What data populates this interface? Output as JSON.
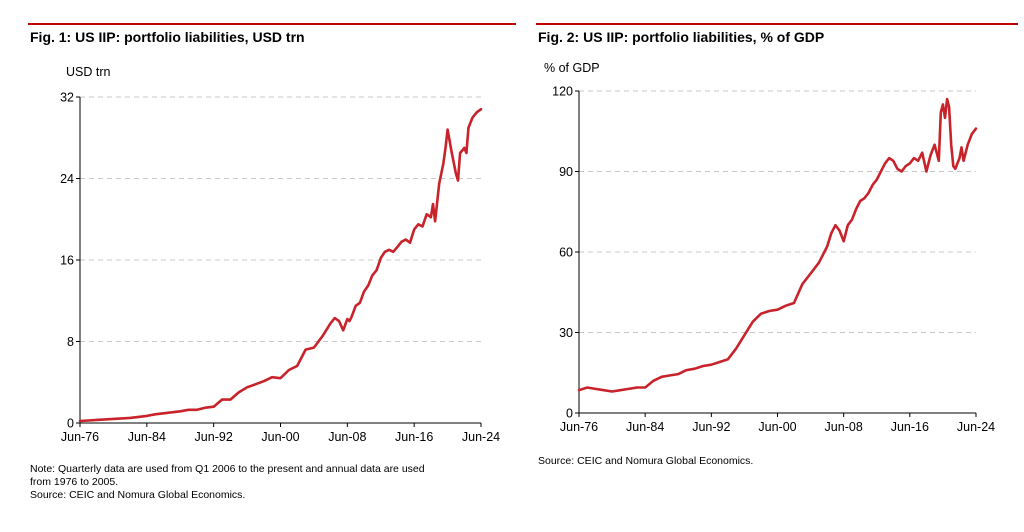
{
  "charts": [
    {
      "title": "Fig. 1: US IIP: portfolio liabilities, USD trn",
      "note_lines": [
        "Note: Quarterly data are used from Q1 2006 to the present and annual data are used",
        "from 1976 to 2005."
      ],
      "source": "Source: CEIC and Nomura Global Economics."
    },
    {
      "title": "Fig. 2: US IIP: portfolio liabilities, % of GDP",
      "source": "Source: CEIC and Nomura Global Economics."
    }
  ],
  "colors": {
    "line": "#c8232b",
    "accent": "#c00000",
    "grid": "#c8c8c8"
  },
  "chart_data": [
    {
      "type": "line",
      "title": "Fig. 1: US IIP: portfolio liabilities, USD trn",
      "ylabel": "USD trn",
      "xlabel": "",
      "ylim": [
        0,
        32
      ],
      "yticks": [
        0,
        8,
        16,
        24,
        32
      ],
      "xlim": [
        1976.5,
        2024.5
      ],
      "xticks": [
        1976.5,
        1984.5,
        1992.5,
        2000.5,
        2008.5,
        2016.5,
        2024.5
      ],
      "xtick_labels": [
        "Jun-76",
        "Jun-84",
        "Jun-92",
        "Jun-00",
        "Jun-08",
        "Jun-16",
        "Jun-24"
      ],
      "grid": true,
      "series": [
        {
          "name": "Portfolio liabilities (USD trn)",
          "x": [
            1976.5,
            1977.5,
            1978.5,
            1979.5,
            1980.5,
            1981.5,
            1982.5,
            1983.5,
            1984.5,
            1985.5,
            1986.5,
            1987.5,
            1988.5,
            1989.5,
            1990.5,
            1991.5,
            1992.5,
            1993.5,
            1994.5,
            1995.5,
            1996.5,
            1997.5,
            1998.5,
            1999.5,
            2000.5,
            2001.5,
            2002.5,
            2003.5,
            2004.5,
            2005.5,
            2006.5,
            2007.0,
            2007.5,
            2008.0,
            2008.5,
            2008.75,
            2009.0,
            2009.5,
            2010.0,
            2010.5,
            2011.0,
            2011.5,
            2012.0,
            2012.5,
            2013.0,
            2013.5,
            2014.0,
            2014.5,
            2015.0,
            2015.5,
            2016.0,
            2016.5,
            2017.0,
            2017.5,
            2018.0,
            2018.5,
            2018.75,
            2019.0,
            2019.5,
            2020.0,
            2020.25,
            2020.5,
            2021.0,
            2021.5,
            2021.75,
            2022.0,
            2022.5,
            2022.75,
            2023.0,
            2023.5,
            2024.0,
            2024.5
          ],
          "values": [
            0.2,
            0.25,
            0.3,
            0.35,
            0.4,
            0.45,
            0.5,
            0.6,
            0.7,
            0.85,
            0.95,
            1.05,
            1.15,
            1.3,
            1.3,
            1.5,
            1.6,
            2.3,
            2.3,
            3.0,
            3.5,
            3.8,
            4.1,
            4.5,
            4.4,
            5.2,
            5.6,
            7.2,
            7.4,
            8.5,
            9.8,
            10.3,
            10.0,
            9.1,
            10.2,
            10.0,
            10.4,
            11.5,
            11.8,
            12.9,
            13.5,
            14.5,
            15.0,
            16.2,
            16.8,
            17.0,
            16.8,
            17.3,
            17.8,
            18.0,
            17.7,
            19.0,
            19.5,
            19.3,
            20.5,
            20.2,
            21.5,
            19.8,
            23.5,
            25.5,
            27.0,
            28.8,
            26.5,
            24.5,
            23.8,
            26.5,
            27.0,
            26.5,
            29.0,
            30.0,
            30.5,
            30.8
          ]
        }
      ]
    },
    {
      "type": "line",
      "title": "Fig. 2: US IIP: portfolio liabilities, % of GDP",
      "ylabel": "% of GDP",
      "xlabel": "",
      "ylim": [
        0,
        120
      ],
      "yticks": [
        0,
        30,
        60,
        90,
        120
      ],
      "xlim": [
        1976.5,
        2024.5
      ],
      "xticks": [
        1976.5,
        1984.5,
        1992.5,
        2000.5,
        2008.5,
        2016.5,
        2024.5
      ],
      "xtick_labels": [
        "Jun-76",
        "Jun-84",
        "Jun-92",
        "Jun-00",
        "Jun-08",
        "Jun-16",
        "Jun-24"
      ],
      "grid": true,
      "series": [
        {
          "name": "Portfolio liabilities (% of GDP)",
          "x": [
            1976.5,
            1977.5,
            1978.5,
            1979.5,
            1980.5,
            1981.5,
            1982.5,
            1983.5,
            1984.5,
            1985.5,
            1986.5,
            1987.5,
            1988.5,
            1989.5,
            1990.5,
            1991.5,
            1992.5,
            1993.5,
            1994.5,
            1995.5,
            1996.5,
            1997.5,
            1998.5,
            1999.5,
            2000.5,
            2001.5,
            2002.5,
            2003.5,
            2004.5,
            2005.5,
            2006.5,
            2007.0,
            2007.5,
            2008.0,
            2008.5,
            2009.0,
            2009.5,
            2010.0,
            2010.5,
            2011.0,
            2011.5,
            2012.0,
            2012.5,
            2013.0,
            2013.5,
            2014.0,
            2014.5,
            2015.0,
            2015.5,
            2016.0,
            2016.5,
            2017.0,
            2017.5,
            2018.0,
            2018.5,
            2019.0,
            2019.5,
            2020.0,
            2020.25,
            2020.5,
            2020.75,
            2021.0,
            2021.25,
            2021.5,
            2021.75,
            2022.0,
            2022.5,
            2022.75,
            2023.0,
            2023.5,
            2024.0,
            2024.5
          ],
          "values": [
            8.5,
            9.5,
            9.0,
            8.5,
            8.0,
            8.5,
            9.0,
            9.5,
            9.5,
            12.0,
            13.5,
            14.0,
            14.5,
            16.0,
            16.5,
            17.5,
            18.0,
            19.0,
            20.0,
            24.0,
            29.0,
            34.0,
            37.0,
            38.0,
            38.5,
            40.0,
            41.0,
            48.0,
            52.0,
            56.0,
            62.0,
            67.0,
            70.0,
            68.0,
            64.0,
            70.0,
            72.0,
            76.0,
            79.0,
            80.0,
            82.0,
            85.0,
            87.0,
            90.0,
            93.0,
            95.0,
            94.0,
            91.0,
            90.0,
            92.0,
            93.0,
            95.0,
            94.0,
            97.0,
            90.0,
            96.0,
            100.0,
            94.0,
            112.0,
            115.0,
            110.0,
            117.0,
            114.0,
            100.0,
            92.0,
            91.0,
            95.0,
            99.0,
            94.0,
            100.0,
            104.0,
            106.0
          ]
        }
      ]
    }
  ]
}
